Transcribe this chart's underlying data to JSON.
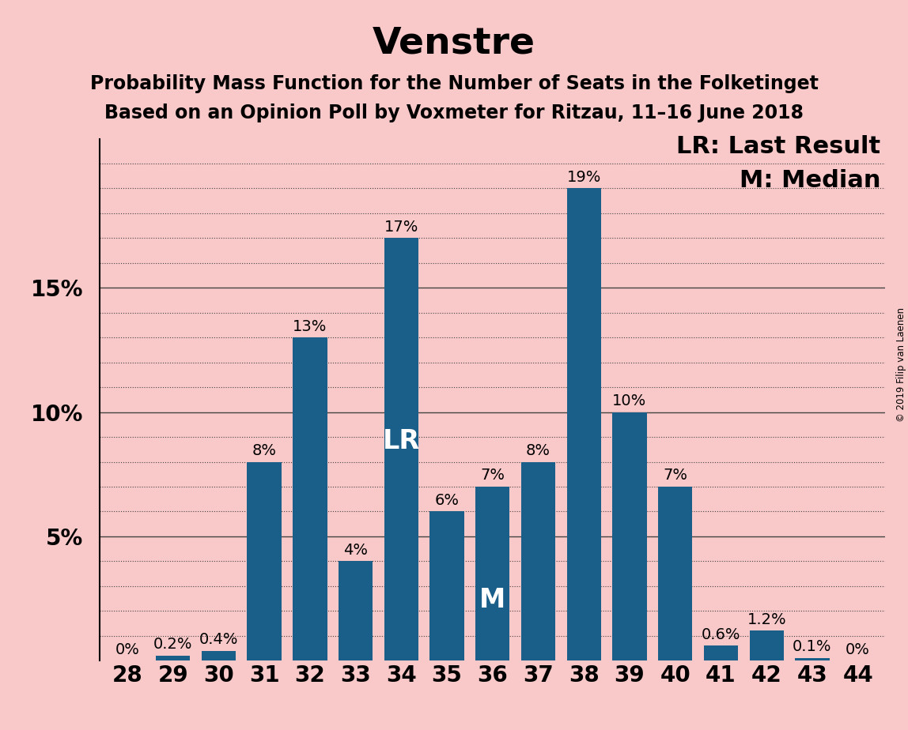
{
  "title": "Venstre",
  "subtitle1": "Probability Mass Function for the Number of Seats in the Folketinget",
  "subtitle2": "Based on an Opinion Poll by Voxmeter for Ritzau, 11–16 June 2018",
  "copyright": "© 2019 Filip van Laenen",
  "legend_lr": "LR: Last Result",
  "legend_m": "M: Median",
  "categories": [
    28,
    29,
    30,
    31,
    32,
    33,
    34,
    35,
    36,
    37,
    38,
    39,
    40,
    41,
    42,
    43,
    44
  ],
  "values": [
    0.0,
    0.2,
    0.4,
    8.0,
    13.0,
    4.0,
    17.0,
    6.0,
    7.0,
    8.0,
    19.0,
    10.0,
    7.0,
    0.6,
    1.2,
    0.1,
    0.0
  ],
  "bar_color": "#1a5f8a",
  "background_color": "#f9c8c8",
  "lr_seat": 34,
  "median_seat": 36,
  "ylim_max": 21,
  "major_yticks": [
    5,
    10,
    15
  ],
  "all_yticks": [
    0,
    1,
    2,
    3,
    4,
    5,
    6,
    7,
    8,
    9,
    10,
    11,
    12,
    13,
    14,
    15,
    16,
    17,
    18,
    19,
    20
  ],
  "grid_color": "#444444",
  "title_fontsize": 34,
  "subtitle_fontsize": 17,
  "tick_fontsize": 20,
  "annotation_fontsize": 14,
  "lr_m_bar_fontsize": 24,
  "legend_fontsize": 22
}
